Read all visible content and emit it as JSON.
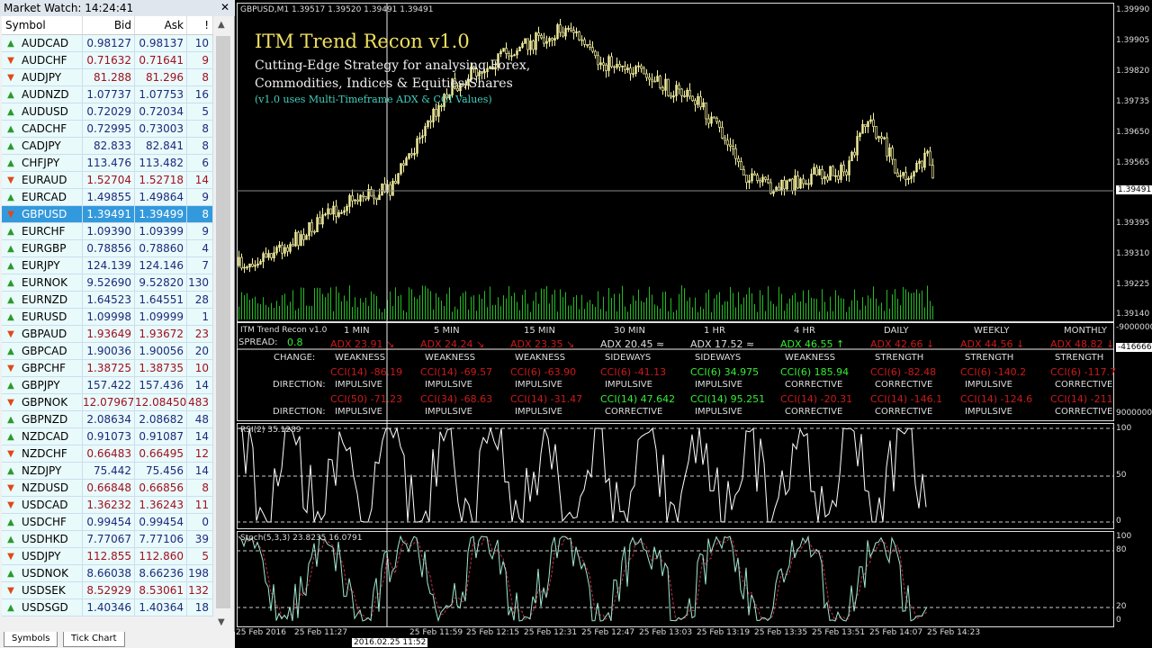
{
  "market_watch": {
    "title": "Market Watch: 14:24:41",
    "close_icon": "close-icon",
    "columns": [
      "Symbol",
      "Bid",
      "Ask",
      "!"
    ],
    "colors": {
      "up_text": "#1c2a7a",
      "down_text": "#a01020",
      "selected_bg": "#3399dd",
      "up_arrow": "#2a9a2a",
      "down_arrow": "#e04818"
    },
    "rows": [
      {
        "symbol": "AUDCAD",
        "bid": "0.98127",
        "ask": "0.98137",
        "spread": "10",
        "dir": "up"
      },
      {
        "symbol": "AUDCHF",
        "bid": "0.71632",
        "ask": "0.71641",
        "spread": "9",
        "dir": "down"
      },
      {
        "symbol": "AUDJPY",
        "bid": "81.288",
        "ask": "81.296",
        "spread": "8",
        "dir": "down"
      },
      {
        "symbol": "AUDNZD",
        "bid": "1.07737",
        "ask": "1.07753",
        "spread": "16",
        "dir": "up"
      },
      {
        "symbol": "AUDUSD",
        "bid": "0.72029",
        "ask": "0.72034",
        "spread": "5",
        "dir": "up"
      },
      {
        "symbol": "CADCHF",
        "bid": "0.72995",
        "ask": "0.73003",
        "spread": "8",
        "dir": "up"
      },
      {
        "symbol": "CADJPY",
        "bid": "82.833",
        "ask": "82.841",
        "spread": "8",
        "dir": "up"
      },
      {
        "symbol": "CHFJPY",
        "bid": "113.476",
        "ask": "113.482",
        "spread": "6",
        "dir": "up"
      },
      {
        "symbol": "EURAUD",
        "bid": "1.52704",
        "ask": "1.52718",
        "spread": "14",
        "dir": "down"
      },
      {
        "symbol": "EURCAD",
        "bid": "1.49855",
        "ask": "1.49864",
        "spread": "9",
        "dir": "up"
      },
      {
        "symbol": "GBPUSD",
        "bid": "1.39491",
        "ask": "1.39499",
        "spread": "8",
        "dir": "down",
        "selected": true
      },
      {
        "symbol": "EURCHF",
        "bid": "1.09390",
        "ask": "1.09399",
        "spread": "9",
        "dir": "up"
      },
      {
        "symbol": "EURGBP",
        "bid": "0.78856",
        "ask": "0.78860",
        "spread": "4",
        "dir": "up"
      },
      {
        "symbol": "EURJPY",
        "bid": "124.139",
        "ask": "124.146",
        "spread": "7",
        "dir": "up"
      },
      {
        "symbol": "EURNOK",
        "bid": "9.52690",
        "ask": "9.52820",
        "spread": "130",
        "dir": "up"
      },
      {
        "symbol": "EURNZD",
        "bid": "1.64523",
        "ask": "1.64551",
        "spread": "28",
        "dir": "up"
      },
      {
        "symbol": "EURUSD",
        "bid": "1.09998",
        "ask": "1.09999",
        "spread": "1",
        "dir": "up"
      },
      {
        "symbol": "GBPAUD",
        "bid": "1.93649",
        "ask": "1.93672",
        "spread": "23",
        "dir": "down"
      },
      {
        "symbol": "GBPCAD",
        "bid": "1.90036",
        "ask": "1.90056",
        "spread": "20",
        "dir": "up"
      },
      {
        "symbol": "GBPCHF",
        "bid": "1.38725",
        "ask": "1.38735",
        "spread": "10",
        "dir": "down"
      },
      {
        "symbol": "GBPJPY",
        "bid": "157.422",
        "ask": "157.436",
        "spread": "14",
        "dir": "up"
      },
      {
        "symbol": "GBPNOK",
        "bid": "12.07967",
        "ask": "12.08450",
        "spread": "483",
        "dir": "down"
      },
      {
        "symbol": "GBPNZD",
        "bid": "2.08634",
        "ask": "2.08682",
        "spread": "48",
        "dir": "up"
      },
      {
        "symbol": "NZDCAD",
        "bid": "0.91073",
        "ask": "0.91087",
        "spread": "14",
        "dir": "up"
      },
      {
        "symbol": "NZDCHF",
        "bid": "0.66483",
        "ask": "0.66495",
        "spread": "12",
        "dir": "down"
      },
      {
        "symbol": "NZDJPY",
        "bid": "75.442",
        "ask": "75.456",
        "spread": "14",
        "dir": "up"
      },
      {
        "symbol": "NZDUSD",
        "bid": "0.66848",
        "ask": "0.66856",
        "spread": "8",
        "dir": "down"
      },
      {
        "symbol": "USDCAD",
        "bid": "1.36232",
        "ask": "1.36243",
        "spread": "11",
        "dir": "down"
      },
      {
        "symbol": "USDCHF",
        "bid": "0.99454",
        "ask": "0.99454",
        "spread": "0",
        "dir": "up"
      },
      {
        "symbol": "USDHKD",
        "bid": "7.77067",
        "ask": "7.77106",
        "spread": "39",
        "dir": "up"
      },
      {
        "symbol": "USDJPY",
        "bid": "112.855",
        "ask": "112.860",
        "spread": "5",
        "dir": "down"
      },
      {
        "symbol": "USDNOK",
        "bid": "8.66038",
        "ask": "8.66236",
        "spread": "198",
        "dir": "up"
      },
      {
        "symbol": "USDSEK",
        "bid": "8.52929",
        "ask": "8.53061",
        "spread": "132",
        "dir": "down"
      },
      {
        "symbol": "USDSGD",
        "bid": "1.40346",
        "ask": "1.40364",
        "spread": "18",
        "dir": "up"
      }
    ],
    "tabs": [
      "Symbols",
      "Tick Chart"
    ]
  },
  "chart": {
    "header": "GBPUSD,M1  1.39517 1.39520 1.39491 1.39491",
    "overlay": {
      "title": "ITM Trend Recon v1.0",
      "line1": "Cutting-Edge Strategy for analysing Forex,",
      "line2": "Commodities, Indices & Equities/Shares",
      "note": "(v1.0 uses Multi-Timeframe ADX & CCI Values)"
    },
    "colors": {
      "candle": "#f4f0a0",
      "volume": "#22bb22",
      "background": "#000000",
      "grid_frame": "#dddddd"
    },
    "price_axis": [
      "1.39990",
      "1.39905",
      "1.39820",
      "1.39735",
      "1.39650",
      "1.39565",
      "1.39395",
      "1.39310",
      "1.39225",
      "1.39140"
    ],
    "current_price": "1.39491",
    "indicator_axis": {
      "top": "-9000000",
      "marker": "-4166666",
      "bottom": "9000000"
    },
    "rsi": {
      "label": "RSI(2) 35.1289",
      "axis": [
        "100",
        "50",
        "0"
      ]
    },
    "stoch": {
      "label": "Stoch(5,3,3) 23.8235 16.0791",
      "axis": [
        "100",
        "80",
        "20",
        "0"
      ]
    },
    "time_axis": [
      "25 Feb 2016",
      "25 Feb 11:27",
      "25 Feb 11:59",
      "25 Feb 12:15",
      "25 Feb 12:31",
      "25 Feb 12:47",
      "25 Feb 13:03",
      "25 Feb 13:19",
      "25 Feb 13:35",
      "25 Feb 13:51",
      "25 Feb 14:07",
      "25 Feb 14:23"
    ],
    "crosshair_time": "2016.02.25 11:52"
  },
  "trend_recon": {
    "name": "ITM Trend Recon v1.0",
    "spread_label": "SPREAD:",
    "spread": "0.8",
    "change_label": "CHANGE:",
    "direction_label": "DIRECTION:",
    "timeframes": [
      {
        "label": "1 MIN",
        "adx": "ADX 23.91 ↘",
        "adx_c": "r",
        "change": "WEAKNESS",
        "cci1": "CCI(14) -86.19",
        "cci1_c": "r",
        "dir1": "IMPULSIVE",
        "cci2": "CCI(50) -71.23",
        "cci2_c": "r",
        "dir2": "IMPULSIVE"
      },
      {
        "label": "5 MIN",
        "adx": "ADX 24.24 ↘",
        "adx_c": "r",
        "change": "WEAKNESS",
        "cci1": "CCI(14) -69.57",
        "cci1_c": "r",
        "dir1": "IMPULSIVE",
        "cci2": "CCI(34) -68.63",
        "cci2_c": "r",
        "dir2": "IMPULSIVE"
      },
      {
        "label": "15 MIN",
        "adx": "ADX 23.35 ↘",
        "adx_c": "r",
        "change": "WEAKNESS",
        "cci1": "CCI(6) -63.90",
        "cci1_c": "r",
        "dir1": "IMPULSIVE",
        "cci2": "CCI(14) -31.47",
        "cci2_c": "r",
        "dir2": "IMPULSIVE"
      },
      {
        "label": "30 MIN",
        "adx": "ADX 20.45 ≈",
        "adx_c": "w",
        "change": "SIDEWAYS",
        "cci1": "CCI(6) -41.13",
        "cci1_c": "r",
        "dir1": "IMPULSIVE",
        "cci2": "CCI(14) 47.642",
        "cci2_c": "g",
        "dir2": "CORRECTIVE"
      },
      {
        "label": "1 HR",
        "adx": "ADX 17.52 ≈",
        "adx_c": "w",
        "change": "SIDEWAYS",
        "cci1": "CCI(6) 34.975",
        "cci1_c": "g",
        "dir1": "IMPULSIVE",
        "cci2": "CCI(14) 95.251",
        "cci2_c": "g",
        "dir2": "IMPULSIVE"
      },
      {
        "label": "4 HR",
        "adx": "ADX 46.55 ↑",
        "adx_c": "g",
        "change": "WEAKNESS",
        "cci1": "CCI(6) 185.94",
        "cci1_c": "g",
        "dir1": "CORRECTIVE",
        "cci2": "CCI(14) -20.31",
        "cci2_c": "r",
        "dir2": "CORRECTIVE"
      },
      {
        "label": "DAILY",
        "adx": "ADX 42.66 ↓",
        "adx_c": "r",
        "change": "STRENGTH",
        "cci1": "CCI(6) -82.48",
        "cci1_c": "r",
        "dir1": "CORRECTIVE",
        "cci2": "CCI(14) -146.1",
        "cci2_c": "r",
        "dir2": "CORRECTIVE"
      },
      {
        "label": "WEEKLY",
        "adx": "ADX 44.56 ↓",
        "adx_c": "r",
        "change": "STRENGTH",
        "cci1": "CCI(6) -140.2",
        "cci1_c": "r",
        "dir1": "IMPULSIVE",
        "cci2": "CCI(14) -124.6",
        "cci2_c": "r",
        "dir2": "IMPULSIVE"
      },
      {
        "label": "MONTHLY",
        "adx": "ADX 48.82 ↓",
        "adx_c": "r",
        "change": "STRENGTH",
        "cci1": "CCI(6) -117.7",
        "cci1_c": "r",
        "dir1": "CORRECTIVE",
        "cci2": "CCI(14) -211",
        "cci2_c": "r",
        "dir2": "CORRECTIVE"
      }
    ]
  }
}
